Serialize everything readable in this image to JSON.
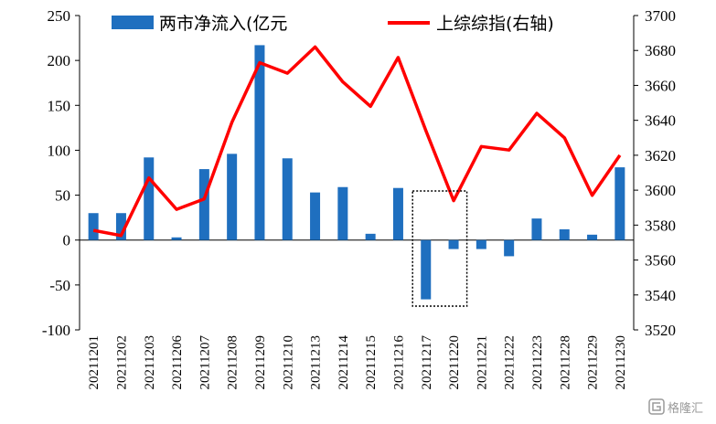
{
  "chart_data": {
    "type": "bar+line",
    "categories": [
      "20211201",
      "20211202",
      "20211203",
      "20211206",
      "20211207",
      "20211208",
      "20211209",
      "20211210",
      "20211213",
      "20211214",
      "20211215",
      "20211216",
      "20211217",
      "20211220",
      "20211221",
      "20211222",
      "20211223",
      "20211228",
      "20211229",
      "20211230"
    ],
    "series": [
      {
        "name": "两市净流入(亿元",
        "type": "bar",
        "axis": "left",
        "color": "#1f6fbf",
        "values": [
          30,
          30,
          92,
          3,
          79,
          96,
          217,
          91,
          53,
          59,
          7,
          58,
          -66,
          -10,
          -10,
          -18,
          24,
          12,
          6,
          81
        ]
      },
      {
        "name": "上综综指(右轴)",
        "type": "line",
        "axis": "right",
        "color": "#ff0000",
        "values": [
          3577,
          3574,
          3607,
          3589,
          3595,
          3639,
          3673,
          3667,
          3682,
          3662,
          3648,
          3676,
          3634,
          3594,
          3625,
          3623,
          3644,
          3630,
          3597,
          3620
        ]
      }
    ],
    "y_left": {
      "min": -100,
      "max": 250,
      "step": 50,
      "ticks": [
        "250",
        "200",
        "150",
        "100",
        "50",
        "0",
        "-50",
        "-100"
      ]
    },
    "y_right": {
      "min": 3520,
      "max": 3700,
      "step": 20,
      "ticks": [
        "3700",
        "3680",
        "3660",
        "3640",
        "3620",
        "3600",
        "3580",
        "3560",
        "3540",
        "3520"
      ]
    },
    "legend": {
      "position": "top",
      "items": [
        "两市净流入(亿元",
        "上综综指(右轴)"
      ]
    },
    "highlight": {
      "categories": [
        "20211217",
        "20211220"
      ],
      "style": "dotted-box"
    },
    "grid": false
  },
  "watermark": {
    "text": "格隆汇",
    "icon": "logo-g-icon"
  }
}
